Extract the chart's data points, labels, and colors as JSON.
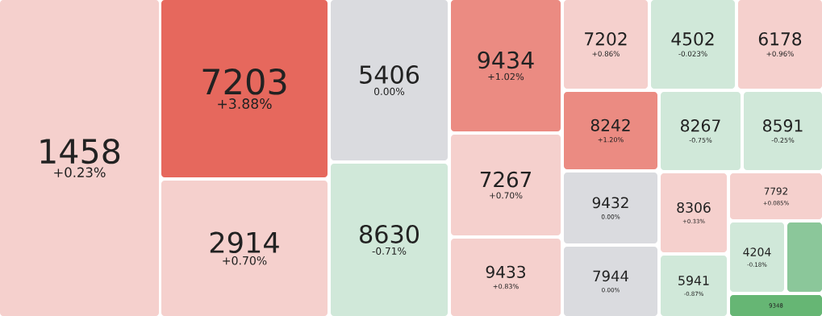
{
  "chart_data": {
    "type": "other",
    "categories": [
      "1458",
      "7203",
      "2914",
      "5406",
      "8630",
      "9434",
      "7267",
      "9433",
      "7202",
      "4502",
      "6178",
      "8242",
      "9432",
      "7944",
      "8267",
      "8591",
      "8306",
      "5941",
      "7792",
      "4204",
      null,
      "9348"
    ],
    "values": [
      0.23,
      3.88,
      0.7,
      0.0,
      -0.71,
      1.02,
      0.7,
      0.83,
      0.86,
      -0.023,
      0.96,
      1.2,
      0.0,
      0.0,
      -0.75,
      -0.25,
      0.33,
      -0.87,
      0.085,
      -0.18,
      null,
      null
    ],
    "value_labels": [
      "+0.23%",
      "+3.88%",
      "+0.70%",
      "0.00%",
      "-0.71%",
      "+1.02%",
      "+0.70%",
      "+0.83%",
      "+0.86%",
      "-0.023%",
      "+0.96%",
      "+1.20%",
      "0.00%",
      "0.00%",
      "-0.75%",
      "-0.25%",
      "+0.33%",
      "-0.87%",
      "+0.085%",
      "-0.18%",
      null,
      null
    ],
    "colors": [
      null,
      null,
      null,
      null,
      null,
      null,
      null,
      null,
      null,
      null,
      null,
      null,
      null,
      null,
      null,
      null,
      null,
      null,
      null,
      null,
      "#8bc79a",
      "#66b674"
    ]
  }
}
